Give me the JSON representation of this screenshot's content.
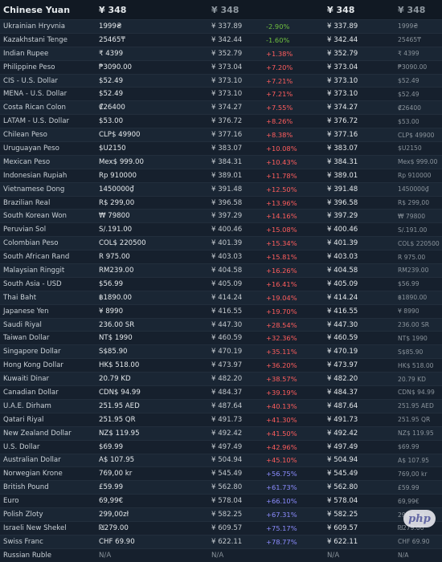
{
  "header": {
    "currency": "Chinese Yuan",
    "price": "¥ 348",
    "price_dim": "¥ 348",
    "price2": "¥ 348",
    "price2_dim": "¥ 348"
  },
  "rows": [
    {
      "name": "Ukrainian Hryvnia",
      "price": "1999₴",
      "conv": "¥ 337.89",
      "pct": "-2.90%",
      "trend": "neg",
      "conv2": "¥ 337.89",
      "price2": "1999₴"
    },
    {
      "name": "Kazakhstani Tenge",
      "price": "25465₸",
      "conv": "¥ 342.44",
      "pct": "-1.60%",
      "trend": "neg",
      "conv2": "¥ 342.44",
      "price2": "25465₸"
    },
    {
      "name": "Indian Rupee",
      "price": "₹ 4399",
      "conv": "¥ 352.79",
      "pct": "+1.38%",
      "trend": "pos",
      "conv2": "¥ 352.79",
      "price2": "₹ 4399"
    },
    {
      "name": "Philippine Peso",
      "price": "₱3090.00",
      "conv": "¥ 373.04",
      "pct": "+7.20%",
      "trend": "pos",
      "conv2": "¥ 373.04",
      "price2": "₱3090.00"
    },
    {
      "name": "CIS - U.S. Dollar",
      "price": "$52.49",
      "conv": "¥ 373.10",
      "pct": "+7.21%",
      "trend": "pos",
      "conv2": "¥ 373.10",
      "price2": "$52.49"
    },
    {
      "name": "MENA - U.S. Dollar",
      "price": "$52.49",
      "conv": "¥ 373.10",
      "pct": "+7.21%",
      "trend": "pos",
      "conv2": "¥ 373.10",
      "price2": "$52.49"
    },
    {
      "name": "Costa Rican Colon",
      "price": "₡26400",
      "conv": "¥ 374.27",
      "pct": "+7.55%",
      "trend": "pos",
      "conv2": "¥ 374.27",
      "price2": "₡26400"
    },
    {
      "name": "LATAM - U.S. Dollar",
      "price": "$53.00",
      "conv": "¥ 376.72",
      "pct": "+8.26%",
      "trend": "pos",
      "conv2": "¥ 376.72",
      "price2": "$53.00"
    },
    {
      "name": "Chilean Peso",
      "price": "CLP$ 49900",
      "conv": "¥ 377.16",
      "pct": "+8.38%",
      "trend": "pos",
      "conv2": "¥ 377.16",
      "price2": "CLP$ 49900"
    },
    {
      "name": "Uruguayan Peso",
      "price": "$U2150",
      "conv": "¥ 383.07",
      "pct": "+10.08%",
      "trend": "pos",
      "conv2": "¥ 383.07",
      "price2": "$U2150"
    },
    {
      "name": "Mexican Peso",
      "price": "Mex$ 999.00",
      "conv": "¥ 384.31",
      "pct": "+10.43%",
      "trend": "pos",
      "conv2": "¥ 384.31",
      "price2": "Mex$ 999.00"
    },
    {
      "name": "Indonesian Rupiah",
      "price": "Rp 910000",
      "conv": "¥ 389.01",
      "pct": "+11.78%",
      "trend": "pos",
      "conv2": "¥ 389.01",
      "price2": "Rp 910000"
    },
    {
      "name": "Vietnamese Dong",
      "price": "1450000₫",
      "conv": "¥ 391.48",
      "pct": "+12.50%",
      "trend": "pos",
      "conv2": "¥ 391.48",
      "price2": "1450000₫"
    },
    {
      "name": "Brazilian Real",
      "price": "R$ 299,00",
      "conv": "¥ 396.58",
      "pct": "+13.96%",
      "trend": "pos",
      "conv2": "¥ 396.58",
      "price2": "R$ 299,00"
    },
    {
      "name": "South Korean Won",
      "price": "₩ 79800",
      "conv": "¥ 397.29",
      "pct": "+14.16%",
      "trend": "pos",
      "conv2": "¥ 397.29",
      "price2": "₩ 79800"
    },
    {
      "name": "Peruvian Sol",
      "price": "S/.191.00",
      "conv": "¥ 400.46",
      "pct": "+15.08%",
      "trend": "pos",
      "conv2": "¥ 400.46",
      "price2": "S/.191.00"
    },
    {
      "name": "Colombian Peso",
      "price": "COL$ 220500",
      "conv": "¥ 401.39",
      "pct": "+15.34%",
      "trend": "pos",
      "conv2": "¥ 401.39",
      "price2": "COL$ 220500"
    },
    {
      "name": "South African Rand",
      "price": "R 975.00",
      "conv": "¥ 403.03",
      "pct": "+15.81%",
      "trend": "pos",
      "conv2": "¥ 403.03",
      "price2": "R 975.00"
    },
    {
      "name": "Malaysian Ringgit",
      "price": "RM239.00",
      "conv": "¥ 404.58",
      "pct": "+16.26%",
      "trend": "pos",
      "conv2": "¥ 404.58",
      "price2": "RM239.00"
    },
    {
      "name": "South Asia - USD",
      "price": "$56.99",
      "conv": "¥ 405.09",
      "pct": "+16.41%",
      "trend": "pos",
      "conv2": "¥ 405.09",
      "price2": "$56.99"
    },
    {
      "name": "Thai Baht",
      "price": "฿1890.00",
      "conv": "¥ 414.24",
      "pct": "+19.04%",
      "trend": "pos",
      "conv2": "¥ 414.24",
      "price2": "฿1890.00"
    },
    {
      "name": "Japanese Yen",
      "price": "¥ 8990",
      "conv": "¥ 416.55",
      "pct": "+19.70%",
      "trend": "pos",
      "conv2": "¥ 416.55",
      "price2": "¥ 8990"
    },
    {
      "name": "Saudi Riyal",
      "price": "236.00 SR",
      "conv": "¥ 447.30",
      "pct": "+28.54%",
      "trend": "pos",
      "conv2": "¥ 447.30",
      "price2": "236.00 SR"
    },
    {
      "name": "Taiwan Dollar",
      "price": "NT$ 1990",
      "conv": "¥ 460.59",
      "pct": "+32.36%",
      "trend": "pos",
      "conv2": "¥ 460.59",
      "price2": "NT$ 1990"
    },
    {
      "name": "Singapore Dollar",
      "price": "S$85.90",
      "conv": "¥ 470.19",
      "pct": "+35.11%",
      "trend": "pos",
      "conv2": "¥ 470.19",
      "price2": "S$85.90"
    },
    {
      "name": "Hong Kong Dollar",
      "price": "HK$ 518.00",
      "conv": "¥ 473.97",
      "pct": "+36.20%",
      "trend": "pos",
      "conv2": "¥ 473.97",
      "price2": "HK$ 518.00"
    },
    {
      "name": "Kuwaiti Dinar",
      "price": "20.79 KD",
      "conv": "¥ 482.20",
      "pct": "+38.57%",
      "trend": "pos",
      "conv2": "¥ 482.20",
      "price2": "20.79 KD"
    },
    {
      "name": "Canadian Dollar",
      "price": "CDN$ 94.99",
      "conv": "¥ 484.37",
      "pct": "+39.19%",
      "trend": "pos",
      "conv2": "¥ 484.37",
      "price2": "CDN$ 94.99"
    },
    {
      "name": "U.A.E. Dirham",
      "price": "251.95 AED",
      "conv": "¥ 487.64",
      "pct": "+40.13%",
      "trend": "pos",
      "conv2": "¥ 487.64",
      "price2": "251.95 AED"
    },
    {
      "name": "Qatari Riyal",
      "price": "251.95 QR",
      "conv": "¥ 491.73",
      "pct": "+41.30%",
      "trend": "pos",
      "conv2": "¥ 491.73",
      "price2": "251.95 QR"
    },
    {
      "name": "New Zealand Dollar",
      "price": "NZ$ 119.95",
      "conv": "¥ 492.42",
      "pct": "+41.50%",
      "trend": "pos",
      "conv2": "¥ 492.42",
      "price2": "NZ$ 119.95"
    },
    {
      "name": "U.S. Dollar",
      "price": "$69.99",
      "conv": "¥ 497.49",
      "pct": "+42.96%",
      "trend": "pos",
      "conv2": "¥ 497.49",
      "price2": "$69.99"
    },
    {
      "name": "Australian Dollar",
      "price": "A$ 107.95",
      "conv": "¥ 504.94",
      "pct": "+45.10%",
      "trend": "pos",
      "conv2": "¥ 504.94",
      "price2": "A$ 107.95"
    },
    {
      "name": "Norwegian Krone",
      "price": "769,00 kr",
      "conv": "¥ 545.49",
      "pct": "+56.75%",
      "trend": "high",
      "conv2": "¥ 545.49",
      "price2": "769,00 kr"
    },
    {
      "name": "British Pound",
      "price": "£59.99",
      "conv": "¥ 562.80",
      "pct": "+61.73%",
      "trend": "high",
      "conv2": "¥ 562.80",
      "price2": "£59.99"
    },
    {
      "name": "Euro",
      "price": "69,99€",
      "conv": "¥ 578.04",
      "pct": "+66.10%",
      "trend": "high",
      "conv2": "¥ 578.04",
      "price2": "69,99€"
    },
    {
      "name": "Polish Zloty",
      "price": "299,00zł",
      "conv": "¥ 582.25",
      "pct": "+67.31%",
      "trend": "high",
      "conv2": "¥ 582.25",
      "price2": "299,00zł"
    },
    {
      "name": "Israeli New Shekel",
      "price": "₪279.00",
      "conv": "¥ 609.57",
      "pct": "+75.17%",
      "trend": "high",
      "conv2": "¥ 609.57",
      "price2": "₪279.00"
    },
    {
      "name": "Swiss Franc",
      "price": "CHF 69.90",
      "conv": "¥ 622.11",
      "pct": "+78.77%",
      "trend": "high",
      "conv2": "¥ 622.11",
      "price2": "CHF 69.90"
    },
    {
      "name": "Russian Ruble",
      "price": "N/A",
      "conv": "N/A",
      "pct": "",
      "trend": "na",
      "conv2": "N/A",
      "price2": "N/A"
    }
  ],
  "watermark": {
    "text": "php"
  },
  "colors": {
    "background": "#16202d",
    "increase": "#ff5d5d",
    "decrease": "#70c040",
    "high_increase": "#8c8cff"
  }
}
